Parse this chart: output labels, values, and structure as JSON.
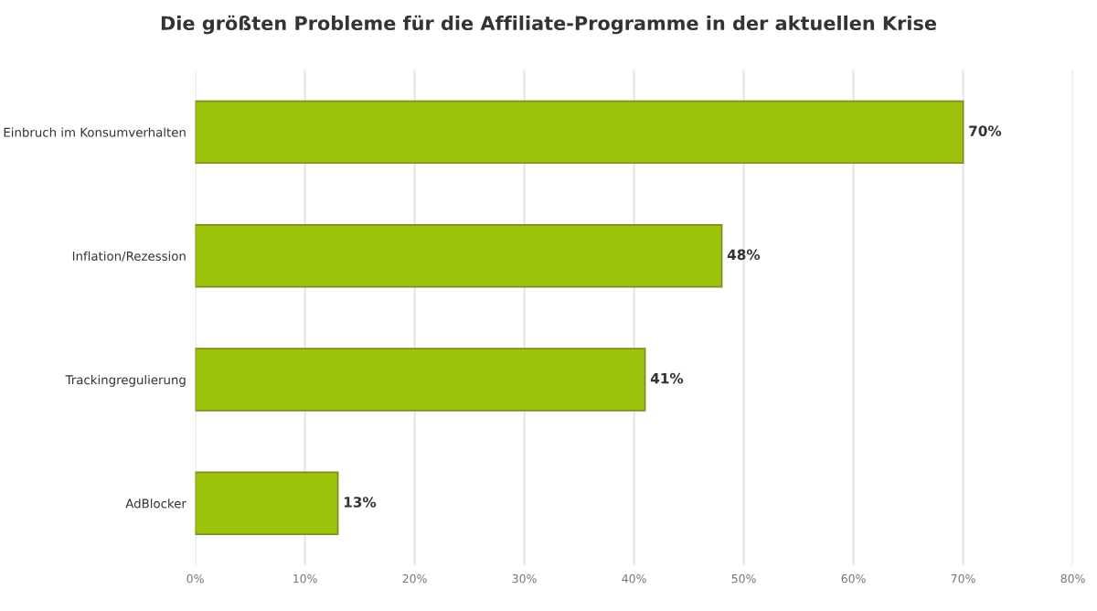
{
  "chart_data": {
    "type": "bar",
    "orientation": "horizontal",
    "title": "Die größten Probleme für die Affiliate-Programme in der aktuellen Krise",
    "categories": [
      "Einbruch im Konsumverhalten",
      "Inflation/Rezession",
      "Trackingregulierung",
      "AdBlocker"
    ],
    "values": [
      70,
      48,
      41,
      13
    ],
    "value_labels": [
      "70%",
      "48%",
      "41%",
      "13%"
    ],
    "color": "#9dc20a",
    "xlim": [
      0,
      80
    ],
    "xticks": [
      {
        "value": 0,
        "label": "0%"
      },
      {
        "value": 10,
        "label": "10%"
      },
      {
        "value": 20,
        "label": "20%"
      },
      {
        "value": 30,
        "label": "30%"
      },
      {
        "value": 40,
        "label": "40%"
      },
      {
        "value": 50,
        "label": "50%"
      },
      {
        "value": 60,
        "label": "60%"
      },
      {
        "value": 70,
        "label": "70%"
      },
      {
        "value": 80,
        "label": "80%"
      }
    ],
    "grid": "x"
  }
}
